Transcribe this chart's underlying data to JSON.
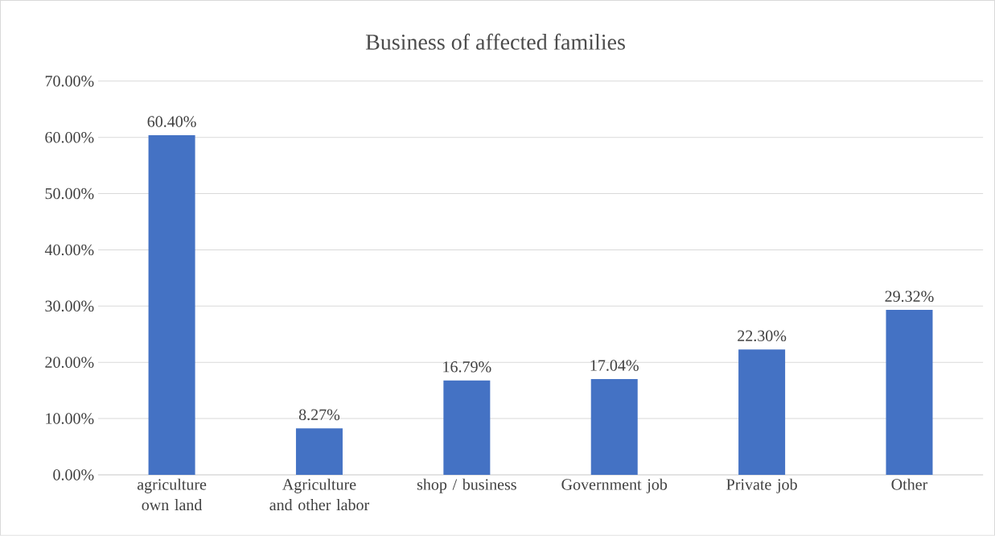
{
  "chart_data": {
    "type": "bar",
    "title": "Business of affected families",
    "categories": [
      "agriculture own land",
      "Agriculture and other labor",
      "shop / business",
      "Government job",
      "Private job",
      "Other"
    ],
    "values": [
      60.4,
      8.27,
      16.79,
      17.04,
      22.3,
      29.32
    ],
    "value_labels": [
      "60.40%",
      "8.27%",
      "16.79%",
      "17.04%",
      "22.30%",
      "29.32%"
    ],
    "color": "#4472c4",
    "ylim": [
      0,
      70
    ],
    "yticks": [
      {
        "value": 0,
        "label": "0.00%"
      },
      {
        "value": 10,
        "label": "10.00%"
      },
      {
        "value": 20,
        "label": "20.00%"
      },
      {
        "value": 30,
        "label": "30.00%"
      },
      {
        "value": 40,
        "label": "40.00%"
      },
      {
        "value": 50,
        "label": "50.00%"
      },
      {
        "value": 60,
        "label": "60.00%"
      },
      {
        "value": 70,
        "label": "70.00%"
      }
    ],
    "grid": "y"
  }
}
